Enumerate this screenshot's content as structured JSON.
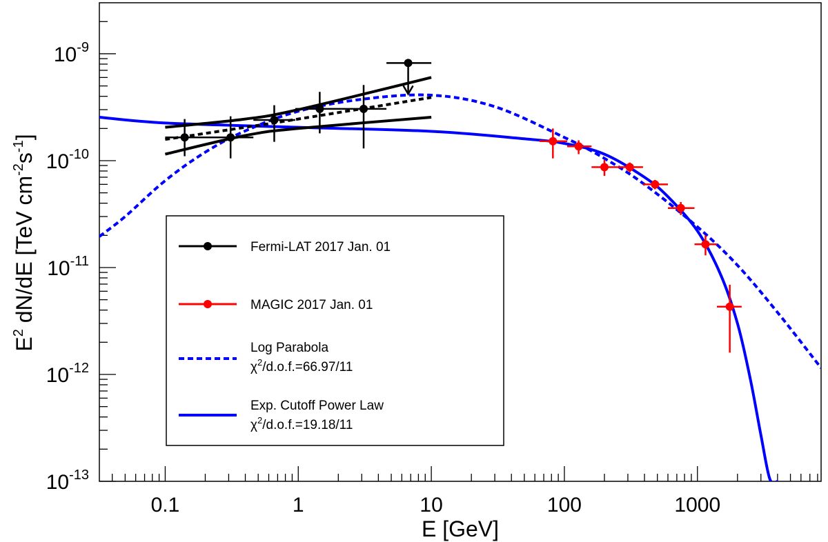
{
  "chart_data": {
    "type": "scatter",
    "xlabel": "E [GeV]",
    "ylabel": {
      "prefix": "E",
      "prefix_sup": "2",
      "main": " dN/dE [TeV cm",
      "sup1": "-2",
      "mid": "s",
      "sup2": "-1",
      "end": "]"
    },
    "x_scale": "log",
    "y_scale": "log",
    "xlim": [
      0.032,
      8500
    ],
    "ylim": [
      1e-13,
      3e-09
    ],
    "x_tick_labels": [
      {
        "value": 0.1,
        "label": "0.1"
      },
      {
        "value": 1,
        "label": "1"
      },
      {
        "value": 10,
        "label": "10"
      },
      {
        "value": 100,
        "label": "100"
      },
      {
        "value": 1000,
        "label": "1000"
      }
    ],
    "y_tick_labels": [
      {
        "value": 1e-13,
        "base": "10",
        "exp": "-13"
      },
      {
        "value": 1e-12,
        "base": "10",
        "exp": "-12"
      },
      {
        "value": 1e-11,
        "base": "10",
        "exp": "-11"
      },
      {
        "value": 1e-10,
        "base": "10",
        "exp": "-10"
      },
      {
        "value": 1e-09,
        "base": "10",
        "exp": "-9"
      }
    ],
    "grid": false,
    "legend_position": "center-left",
    "fermi": {
      "name": "Fermi-LAT 2017 Jan. 01",
      "color": "#000000",
      "points": [
        {
          "x": 0.14,
          "y": 1.65e-10,
          "xlo": 0.1,
          "xhi": 0.2,
          "ylo": 1.1e-10,
          "yhi": 2.45e-10
        },
        {
          "x": 0.31,
          "y": 1.65e-10,
          "xlo": 0.2,
          "xhi": 0.46,
          "ylo": 1.05e-10,
          "yhi": 2.6e-10
        },
        {
          "x": 0.66,
          "y": 2.4e-10,
          "xlo": 0.46,
          "xhi": 0.95,
          "ylo": 1.5e-10,
          "yhi": 3.3e-10
        },
        {
          "x": 1.45,
          "y": 3.05e-10,
          "xlo": 0.95,
          "xhi": 2.1,
          "ylo": 1.8e-10,
          "yhi": 4.4e-10
        },
        {
          "x": 3.1,
          "y": 3.05e-10,
          "xlo": 2.1,
          "xhi": 4.6,
          "ylo": 1.3e-10,
          "yhi": 5.1e-10
        }
      ],
      "upper_limit": {
        "x": 6.7,
        "y": 8.2e-10,
        "xlo": 4.6,
        "xhi": 10,
        "arrow_to": 4.2e-10
      },
      "bowtie": {
        "upper": [
          {
            "x": 0.1,
            "y": 2.05e-10
          },
          {
            "x": 0.4,
            "y": 2.45e-10
          },
          {
            "x": 1,
            "y": 3e-10
          },
          {
            "x": 10,
            "y": 6e-10
          }
        ],
        "lower": [
          {
            "x": 0.1,
            "y": 1.15e-10
          },
          {
            "x": 0.4,
            "y": 1.72e-10
          },
          {
            "x": 1,
            "y": 2e-10
          },
          {
            "x": 10,
            "y": 2.55e-10
          }
        ],
        "fit": [
          {
            "x": 0.1,
            "y": 1.58e-10
          },
          {
            "x": 0.4,
            "y": 2.05e-10
          },
          {
            "x": 1,
            "y": 2.45e-10
          },
          {
            "x": 10,
            "y": 3.9e-10
          }
        ]
      }
    },
    "magic": {
      "name": "MAGIC 2017 Jan. 01",
      "color": "#ff0000",
      "points": [
        {
          "x": 82,
          "y": 1.52e-10,
          "xlo": 65,
          "xhi": 105,
          "ylo": 1.05e-10,
          "yhi": 2e-10
        },
        {
          "x": 128,
          "y": 1.36e-10,
          "xlo": 105,
          "xhi": 160,
          "ylo": 1.15e-10,
          "yhi": 1.55e-10
        },
        {
          "x": 200,
          "y": 8.7e-11,
          "xlo": 160,
          "xhi": 250,
          "ylo": 7.2e-11,
          "yhi": 1.02e-10
        },
        {
          "x": 310,
          "y": 8.7e-11,
          "xlo": 250,
          "xhi": 390,
          "ylo": 7.8e-11,
          "yhi": 9.6e-11
        },
        {
          "x": 480,
          "y": 6e-11,
          "xlo": 390,
          "xhi": 600,
          "ylo": 5.4e-11,
          "yhi": 6.6e-11
        },
        {
          "x": 750,
          "y": 3.6e-11,
          "xlo": 600,
          "xhi": 950,
          "ylo": 3.1e-11,
          "yhi": 4.1e-11
        },
        {
          "x": 1150,
          "y": 1.65e-11,
          "xlo": 950,
          "xhi": 1400,
          "ylo": 1.3e-11,
          "yhi": 2e-11
        },
        {
          "x": 1750,
          "y": 4.3e-12,
          "xlo": 1400,
          "xhi": 2150,
          "ylo": 1.6e-12,
          "yhi": 6.9e-12
        }
      ]
    },
    "log_parabola": {
      "name": "Log Parabola",
      "stat": {
        "chi": "χ",
        "sup": "2",
        "rest": "/d.o.f.=66.97/11"
      },
      "color": "#0000ff",
      "dash": "8 5",
      "points": [
        {
          "x": 0.032,
          "y": 1.95e-11
        },
        {
          "x": 0.05,
          "y": 3e-11
        },
        {
          "x": 0.1,
          "y": 6.5e-11
        },
        {
          "x": 0.2,
          "y": 1.2e-10
        },
        {
          "x": 0.4,
          "y": 1.9e-10
        },
        {
          "x": 1,
          "y": 2.9e-10
        },
        {
          "x": 3,
          "y": 3.75e-10
        },
        {
          "x": 10,
          "y": 4.1e-10
        },
        {
          "x": 30,
          "y": 3.2e-10
        },
        {
          "x": 100,
          "y": 1.65e-10
        },
        {
          "x": 200,
          "y": 1.05e-10
        },
        {
          "x": 400,
          "y": 6e-11
        },
        {
          "x": 1000,
          "y": 2.4e-11
        },
        {
          "x": 2000,
          "y": 1.05e-11
        },
        {
          "x": 4000,
          "y": 3.8e-12
        },
        {
          "x": 8500,
          "y": 1.15e-12
        }
      ]
    },
    "exp_cutoff": {
      "name": "Exp. Cutoff Power Law",
      "stat": {
        "chi": "χ",
        "sup": "2",
        "rest": "/d.o.f.=19.18/11"
      },
      "color": "#0000ff",
      "points": [
        {
          "x": 0.032,
          "y": 2.55e-10
        },
        {
          "x": 0.1,
          "y": 2.25e-10
        },
        {
          "x": 1,
          "y": 2.05e-10
        },
        {
          "x": 10,
          "y": 1.88e-10
        },
        {
          "x": 50,
          "y": 1.6e-10
        },
        {
          "x": 100,
          "y": 1.45e-10
        },
        {
          "x": 200,
          "y": 1.15e-10
        },
        {
          "x": 400,
          "y": 7e-11
        },
        {
          "x": 600,
          "y": 4.6e-11
        },
        {
          "x": 1000,
          "y": 2.2e-11
        },
        {
          "x": 1500,
          "y": 8.5e-12
        },
        {
          "x": 2000,
          "y": 3e-12
        },
        {
          "x": 2500,
          "y": 9e-13
        },
        {
          "x": 3000,
          "y": 2.7e-13
        },
        {
          "x": 3500,
          "y": 1.05e-13
        },
        {
          "x": 4000,
          "y": 1e-13
        }
      ]
    }
  }
}
